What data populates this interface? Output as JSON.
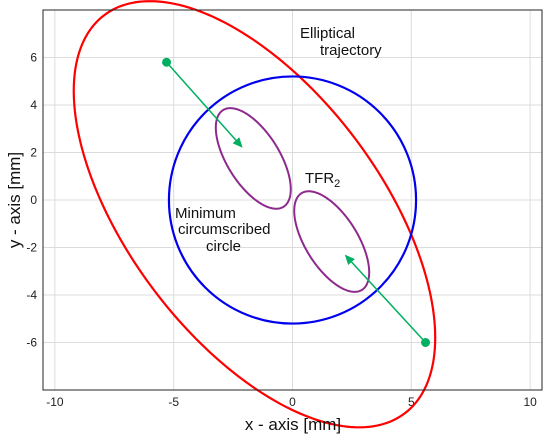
{
  "chart_data": {
    "type": "line",
    "xlabel": "x - axis [mm]",
    "ylabel": "y - axis [mm]",
    "xlim": [
      -10.5,
      10.5
    ],
    "ylim": [
      -8,
      8
    ],
    "xticks": [
      -10,
      -5,
      0,
      5,
      10
    ],
    "yticks": [
      -6,
      -4,
      -2,
      0,
      2,
      4,
      6
    ],
    "grid": true,
    "colors": {
      "ellipse": "#ff0000",
      "circle": "#0000ee",
      "lobes": "#8e2a8e",
      "arrows": "#00b060"
    },
    "series": [
      {
        "kind": "ellipse",
        "color": "#ff0000",
        "center": [
          -1.6,
          -0.6
        ],
        "semi_axes": [
          10.5,
          5.3
        ],
        "rotation_deg": -53
      },
      {
        "kind": "circle",
        "color": "#0000ee",
        "center": [
          0,
          0
        ],
        "radius": 5.2
      },
      {
        "kind": "lobe",
        "color": "#8e2a8e",
        "center": [
          -1.65,
          1.75
        ],
        "semi_axes": [
          2.4,
          1.1
        ],
        "rotation_deg": -58
      },
      {
        "kind": "lobe",
        "color": "#8e2a8e",
        "center": [
          1.65,
          -1.75
        ],
        "semi_axes": [
          2.4,
          1.1
        ],
        "rotation_deg": -58
      }
    ],
    "markers": [
      {
        "x": -5.3,
        "y": 5.8,
        "color": "#00b060"
      },
      {
        "x": 5.6,
        "y": -6.0,
        "color": "#00b060"
      }
    ],
    "arrows": [
      {
        "from": [
          -5.3,
          5.8
        ],
        "to": [
          -2.1,
          2.2
        ],
        "color": "#00b060"
      },
      {
        "from": [
          5.6,
          -6.0
        ],
        "to": [
          2.2,
          -2.3
        ],
        "color": "#00b060"
      }
    ],
    "annotations": {
      "elliptical": [
        "Elliptical",
        "trajectory"
      ],
      "tfr_main": "TFR",
      "tfr_sub": "2",
      "circle": [
        "Minimum",
        "circumscribed",
        "circle"
      ]
    }
  }
}
